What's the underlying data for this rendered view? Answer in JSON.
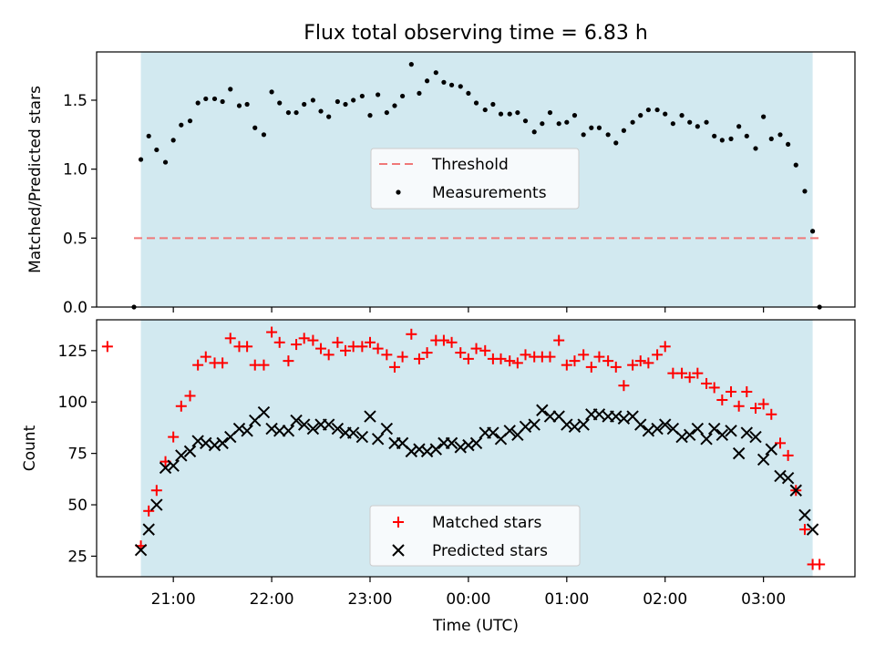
{
  "figure": {
    "title": "Flux total observing time = 6.83 h",
    "xlabel": "Time (UTC)"
  },
  "chart_data": [
    {
      "type": "scatter",
      "panel": "top",
      "ylabel": "Matched/Predicted stars",
      "ylim": [
        0,
        1.85
      ],
      "yticks": [
        0.0,
        0.5,
        1.0,
        1.5
      ],
      "ytick_labels": [
        "0.0",
        "0.5",
        "1.0",
        "1.5"
      ],
      "x_unit": "hours relative to 00:00 UTC",
      "xlim": [
        -3.78,
        3.93
      ],
      "observing_window": [
        -3.33,
        3.5
      ],
      "shading_color": "#d2e9f0",
      "threshold": {
        "y": 0.5,
        "x_range": [
          -3.4,
          3.57
        ],
        "color": "#f07878",
        "style": "dashed"
      },
      "legend": {
        "placement": "center",
        "entries": [
          "Threshold",
          "Measurements"
        ]
      },
      "series": [
        {
          "name": "Measurements",
          "marker": "dot",
          "color": "#000000",
          "x": [
            -3.4,
            -3.33,
            -3.25,
            -3.17,
            -3.08,
            -3.0,
            -2.92,
            -2.83,
            -2.75,
            -2.67,
            -2.58,
            -2.5,
            -2.42,
            -2.33,
            -2.25,
            -2.17,
            -2.08,
            -2.0,
            -1.92,
            -1.83,
            -1.75,
            -1.67,
            -1.58,
            -1.5,
            -1.42,
            -1.33,
            -1.25,
            -1.17,
            -1.08,
            -1.0,
            -0.92,
            -0.83,
            -0.75,
            -0.67,
            -0.58,
            -0.5,
            -0.42,
            -0.33,
            -0.25,
            -0.17,
            -0.08,
            0.0,
            0.08,
            0.17,
            0.25,
            0.33,
            0.42,
            0.5,
            0.58,
            0.67,
            0.75,
            0.83,
            0.92,
            1.0,
            1.08,
            1.17,
            1.25,
            1.33,
            1.42,
            1.5,
            1.58,
            1.67,
            1.75,
            1.83,
            1.92,
            2.0,
            2.08,
            2.17,
            2.25,
            2.33,
            2.42,
            2.5,
            2.58,
            2.67,
            2.75,
            2.83,
            2.92,
            3.0,
            3.08,
            3.17,
            3.25,
            3.33,
            3.42,
            3.5,
            3.57
          ],
          "y": [
            0.0,
            1.07,
            1.24,
            1.14,
            1.05,
            1.21,
            1.32,
            1.35,
            1.48,
            1.51,
            1.51,
            1.49,
            1.58,
            1.46,
            1.47,
            1.3,
            1.25,
            1.56,
            1.48,
            1.41,
            1.41,
            1.47,
            1.5,
            1.42,
            1.38,
            1.49,
            1.47,
            1.5,
            1.53,
            1.39,
            1.54,
            1.41,
            1.46,
            1.53,
            1.76,
            1.55,
            1.64,
            1.7,
            1.63,
            1.61,
            1.6,
            1.55,
            1.48,
            1.43,
            1.47,
            1.4,
            1.4,
            1.41,
            1.35,
            1.27,
            1.33,
            1.41,
            1.33,
            1.34,
            1.39,
            1.25,
            1.3,
            1.3,
            1.25,
            1.19,
            1.28,
            1.34,
            1.39,
            1.43,
            1.43,
            1.4,
            1.33,
            1.39,
            1.34,
            1.31,
            1.34,
            1.24,
            1.21,
            1.22,
            1.31,
            1.24,
            1.15,
            1.38,
            1.22,
            1.25,
            1.18,
            1.03,
            0.84,
            0.55,
            0.0
          ]
        }
      ]
    },
    {
      "type": "scatter",
      "panel": "bottom",
      "ylabel": "Count",
      "ylim": [
        15,
        140
      ],
      "yticks": [
        25,
        50,
        75,
        100,
        125
      ],
      "ytick_labels": [
        "25",
        "50",
        "75",
        "100",
        "125"
      ],
      "xlabel": "Time (UTC)",
      "x_unit": "hours relative to 00:00 UTC",
      "xlim": [
        -3.78,
        3.93
      ],
      "xticks": [
        -3,
        -2,
        -1,
        0,
        1,
        2,
        3
      ],
      "xtick_labels": [
        "21:00",
        "22:00",
        "23:00",
        "00:00",
        "01:00",
        "02:00",
        "03:00"
      ],
      "observing_window": [
        -3.33,
        3.5
      ],
      "shading_color": "#d2e9f0",
      "legend": {
        "placement": "lower center",
        "entries": [
          "Matched stars",
          "Predicted stars"
        ]
      },
      "series": [
        {
          "name": "Matched stars",
          "marker": "+",
          "color": "#ff0000",
          "x": [
            -3.67,
            -3.33,
            -3.25,
            -3.17,
            -3.08,
            -3.0,
            -2.92,
            -2.83,
            -2.75,
            -2.67,
            -2.58,
            -2.5,
            -2.42,
            -2.33,
            -2.25,
            -2.17,
            -2.08,
            -2.0,
            -1.92,
            -1.83,
            -1.75,
            -1.67,
            -1.58,
            -1.5,
            -1.42,
            -1.33,
            -1.25,
            -1.17,
            -1.08,
            -1.0,
            -0.92,
            -0.83,
            -0.75,
            -0.67,
            -0.58,
            -0.5,
            -0.42,
            -0.33,
            -0.25,
            -0.17,
            -0.08,
            0.0,
            0.08,
            0.17,
            0.25,
            0.33,
            0.42,
            0.5,
            0.58,
            0.67,
            0.75,
            0.83,
            0.92,
            1.0,
            1.08,
            1.17,
            1.25,
            1.33,
            1.42,
            1.5,
            1.58,
            1.67,
            1.75,
            1.83,
            1.92,
            2.0,
            2.08,
            2.17,
            2.25,
            2.33,
            2.42,
            2.5,
            2.58,
            2.67,
            2.75,
            2.83,
            2.92,
            3.0,
            3.08,
            3.17,
            3.25,
            3.33,
            3.42,
            3.5,
            3.57
          ],
          "y": [
            127,
            30,
            47,
            57,
            71,
            83,
            98,
            103,
            118,
            122,
            119,
            119,
            131,
            127,
            127,
            118,
            118,
            134,
            129,
            120,
            128,
            131,
            130,
            126,
            123,
            129,
            125,
            127,
            127,
            129,
            126,
            123,
            117,
            122,
            133,
            121,
            124,
            130,
            130,
            129,
            124,
            121,
            126,
            125,
            121,
            121,
            120,
            119,
            123,
            122,
            122,
            122,
            130,
            118,
            120,
            123,
            117,
            122,
            120,
            117,
            108,
            118,
            120,
            119,
            123,
            127,
            114,
            114,
            112,
            114,
            109,
            107,
            101,
            105,
            98,
            105,
            97,
            99,
            94,
            80,
            74,
            57,
            38,
            21,
            21
          ]
        },
        {
          "name": "Predicted stars",
          "marker": "x",
          "color": "#000000",
          "x": [
            -3.33,
            -3.25,
            -3.17,
            -3.08,
            -3.0,
            -2.92,
            -2.83,
            -2.75,
            -2.67,
            -2.58,
            -2.5,
            -2.42,
            -2.33,
            -2.25,
            -2.17,
            -2.08,
            -2.0,
            -1.92,
            -1.83,
            -1.75,
            -1.67,
            -1.58,
            -1.5,
            -1.42,
            -1.33,
            -1.25,
            -1.17,
            -1.08,
            -1.0,
            -0.92,
            -0.83,
            -0.75,
            -0.67,
            -0.58,
            -0.5,
            -0.42,
            -0.33,
            -0.25,
            -0.17,
            -0.08,
            0.0,
            0.08,
            0.17,
            0.25,
            0.33,
            0.42,
            0.5,
            0.58,
            0.67,
            0.75,
            0.83,
            0.92,
            1.0,
            1.08,
            1.17,
            1.25,
            1.33,
            1.42,
            1.5,
            1.58,
            1.67,
            1.75,
            1.83,
            1.92,
            2.0,
            2.08,
            2.17,
            2.25,
            2.33,
            2.42,
            2.5,
            2.58,
            2.67,
            2.75,
            2.83,
            2.92,
            3.0,
            3.08,
            3.17,
            3.25,
            3.33,
            3.42,
            3.5
          ],
          "y": [
            28,
            38,
            50,
            68,
            69,
            74,
            76,
            81,
            80,
            79,
            80,
            83,
            87,
            86,
            91,
            95,
            87,
            86,
            86,
            91,
            89,
            87,
            89,
            89,
            87,
            85,
            85,
            83,
            93,
            82,
            87,
            80,
            80,
            76,
            77,
            76,
            77,
            80,
            80,
            78,
            79,
            80,
            85,
            85,
            82,
            86,
            84,
            88,
            89,
            96,
            93,
            93,
            89,
            88,
            89,
            94,
            94,
            93,
            93,
            92,
            93,
            89,
            86,
            87,
            89,
            87,
            83,
            84,
            87,
            82,
            87,
            84,
            86,
            75,
            85,
            83,
            72,
            77,
            64,
            63,
            57,
            45,
            38
          ]
        }
      ]
    }
  ]
}
